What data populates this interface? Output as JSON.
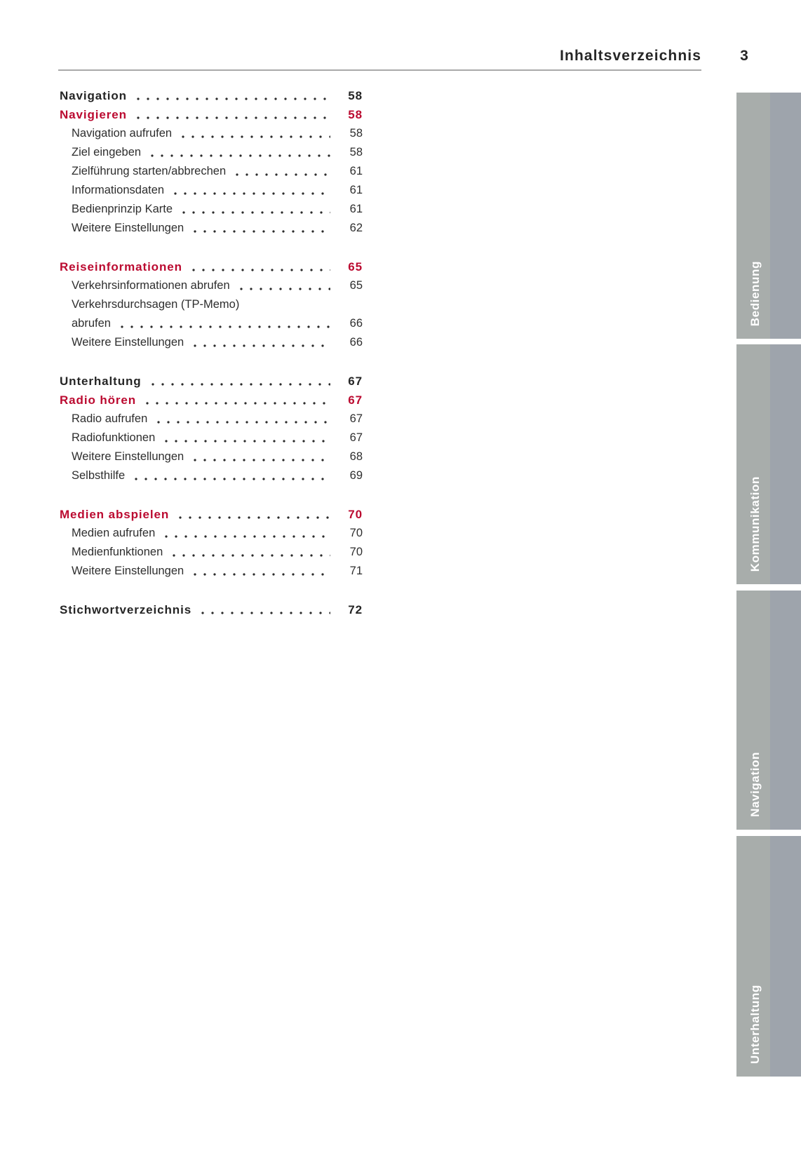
{
  "header": {
    "title": "Inhaltsverzeichnis",
    "page_number": "3"
  },
  "colors": {
    "accent_red": "#bb0a30",
    "text": "#262626",
    "page_bg": "#ffffff",
    "tab_light": "#a8adab",
    "tab_dark": "#9ea4ac",
    "tab_text": "#ffffff"
  },
  "toc": {
    "groups": [
      {
        "entries": [
          {
            "label": "Navigation",
            "page": "58",
            "variant": "top"
          },
          {
            "label": "Navigieren",
            "page": "58",
            "variant": "top-red"
          },
          {
            "label": "Navigation aufrufen",
            "page": "58",
            "variant": "sub"
          },
          {
            "label": "Ziel eingeben",
            "page": "58",
            "variant": "sub"
          },
          {
            "label": "Zielführung starten/abbrechen",
            "page": "61",
            "variant": "sub"
          },
          {
            "label": "Informationsdaten",
            "page": "61",
            "variant": "sub"
          },
          {
            "label": "Bedienprinzip Karte",
            "page": "61",
            "variant": "sub"
          },
          {
            "label": "Weitere Einstellungen",
            "page": "62",
            "variant": "sub"
          }
        ]
      },
      {
        "entries": [
          {
            "label": "Reiseinformationen",
            "page": "65",
            "variant": "top-red"
          },
          {
            "label": "Verkehrsinformationen abrufen",
            "page": "65",
            "variant": "sub"
          },
          {
            "label": "Verkehrsdurchsagen (TP-Memo)",
            "page": "",
            "variant": "sub-wrap"
          },
          {
            "label": "abrufen",
            "page": "66",
            "variant": "sub"
          },
          {
            "label": "Weitere Einstellungen",
            "page": "66",
            "variant": "sub"
          }
        ]
      },
      {
        "entries": [
          {
            "label": "Unterhaltung",
            "page": "67",
            "variant": "top"
          },
          {
            "label": "Radio hören",
            "page": "67",
            "variant": "top-red"
          },
          {
            "label": "Radio aufrufen",
            "page": "67",
            "variant": "sub"
          },
          {
            "label": "Radiofunktionen",
            "page": "67",
            "variant": "sub"
          },
          {
            "label": "Weitere Einstellungen",
            "page": "68",
            "variant": "sub"
          },
          {
            "label": "Selbsthilfe",
            "page": "69",
            "variant": "sub"
          }
        ]
      },
      {
        "entries": [
          {
            "label": "Medien abspielen",
            "page": "70",
            "variant": "top-red"
          },
          {
            "label": "Medien aufrufen",
            "page": "70",
            "variant": "sub"
          },
          {
            "label": "Medienfunktionen",
            "page": "70",
            "variant": "sub"
          },
          {
            "label": "Weitere Einstellungen",
            "page": "71",
            "variant": "sub"
          }
        ]
      },
      {
        "entries": [
          {
            "label": "Stichwortverzeichnis",
            "page": "72",
            "variant": "top"
          }
        ]
      }
    ]
  },
  "sidebar": {
    "tabs": [
      {
        "label": "Bedienung"
      },
      {
        "label": "Kommunikation"
      },
      {
        "label": "Navigation"
      },
      {
        "label": "Unterhaltung"
      }
    ]
  }
}
